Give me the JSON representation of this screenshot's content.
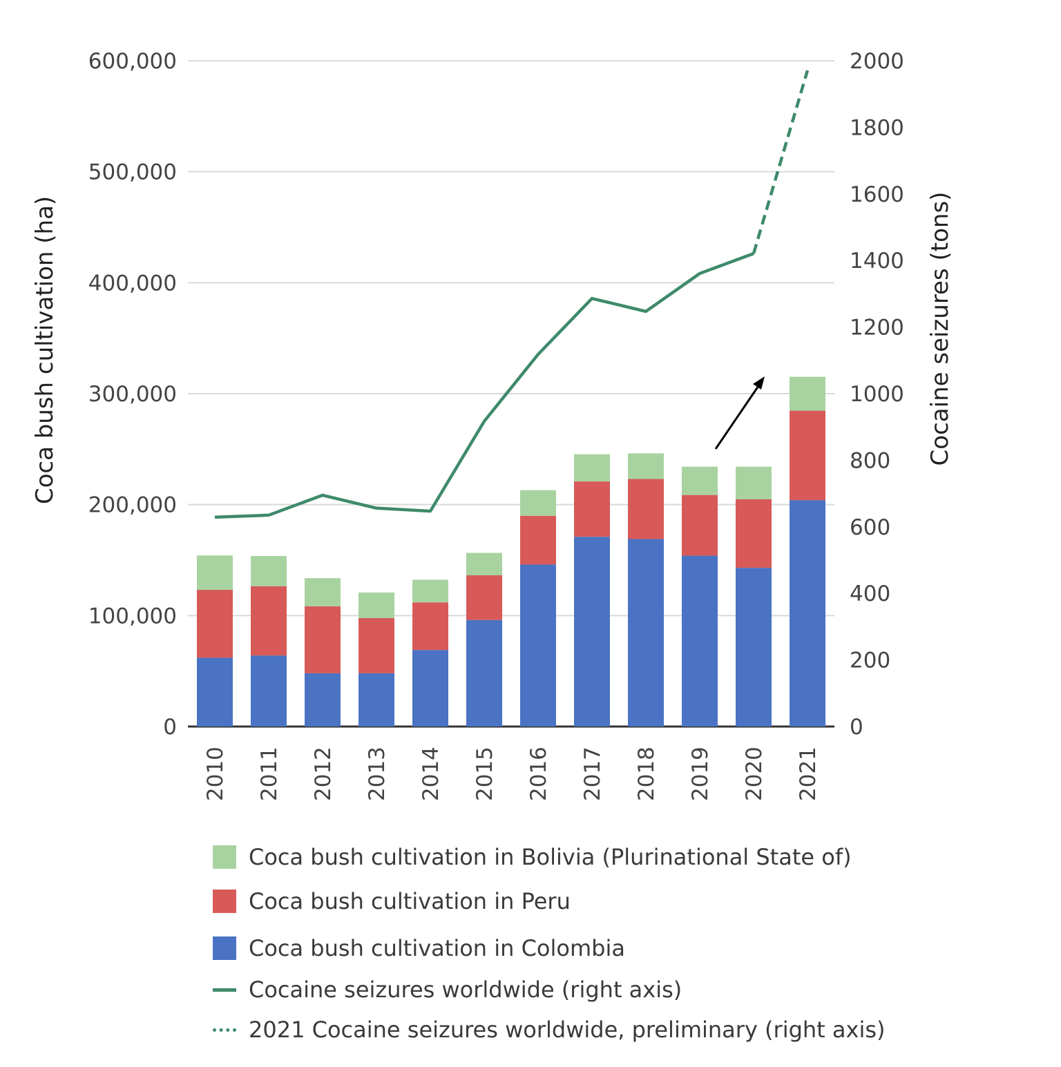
{
  "chart_data": {
    "type": "bar",
    "stacked": true,
    "categories": [
      "2010",
      "2011",
      "2012",
      "2013",
      "2014",
      "2015",
      "2016",
      "2017",
      "2018",
      "2019",
      "2020",
      "2021"
    ],
    "ylabel": "Coca bush cultivation (ha)",
    "ylabel_right": "Cocaine seizures (tons)",
    "ylim": [
      0,
      600000
    ],
    "ylim_right": [
      0,
      2000
    ],
    "yticks": [
      "0",
      "100,000",
      "200,000",
      "300,000",
      "400,000",
      "500,000",
      "600,000"
    ],
    "yticks_right": [
      "0",
      "200",
      "400",
      "600",
      "800",
      "1000",
      "1200",
      "1400",
      "1600",
      "1800",
      "2000"
    ],
    "grid": true,
    "legend_position": "bottom",
    "series": [
      {
        "name": "Coca bush cultivation in Colombia",
        "color": "#4a73c3",
        "type": "bar",
        "values": [
          62000,
          64000,
          48000,
          48000,
          69000,
          96000,
          146000,
          171000,
          169000,
          154000,
          143000,
          204000
        ]
      },
      {
        "name": "Coca bush cultivation in Peru",
        "color": "#d75a58",
        "type": "bar",
        "values": [
          61200,
          62500,
          60400,
          49800,
          42900,
          40300,
          43900,
          49900,
          54100,
          54700,
          61800,
          80700
        ]
      },
      {
        "name": "Coca bush cultivation in Bolivia (Plurinational State of)",
        "color": "#a8d3a0",
        "type": "bar",
        "values": [
          31000,
          27200,
          25300,
          23000,
          20400,
          20200,
          23100,
          24500,
          23100,
          25500,
          29400,
          30500
        ]
      },
      {
        "name": "Cocaine seizures worldwide (right axis)",
        "color": "#3e8a6a",
        "type": "line",
        "axis": "right",
        "values": [
          629,
          635,
          695,
          656,
          647,
          917,
          1118,
          1286,
          1247,
          1361,
          1421,
          null
        ]
      },
      {
        "name": "2021 Cocaine seizures worldwide, preliminary (right axis)",
        "color": "#3e8a6a",
        "type": "line-dashed",
        "axis": "right",
        "values": [
          null,
          null,
          null,
          null,
          null,
          null,
          null,
          null,
          null,
          null,
          1421,
          1971
        ]
      }
    ],
    "annotations": [
      {
        "type": "arrow",
        "direction": "up-right",
        "color": "#000000"
      }
    ]
  },
  "legend": [
    {
      "label": "Coca bush cultivation in Bolivia (Plurinational State of)",
      "kind": "box",
      "color": "#a8d3a0"
    },
    {
      "label": "Coca bush cultivation in Peru",
      "kind": "box",
      "color": "#d75a58"
    },
    {
      "label": "Coca bush cultivation in Colombia",
      "kind": "box",
      "color": "#4a73c3"
    },
    {
      "label": "Cocaine seizures worldwide (right axis)",
      "kind": "line",
      "color": "#3e8a6a"
    },
    {
      "label": "2021 Cocaine seizures worldwide, preliminary (right axis)",
      "kind": "dotted",
      "color": "#3e8a6a"
    }
  ]
}
